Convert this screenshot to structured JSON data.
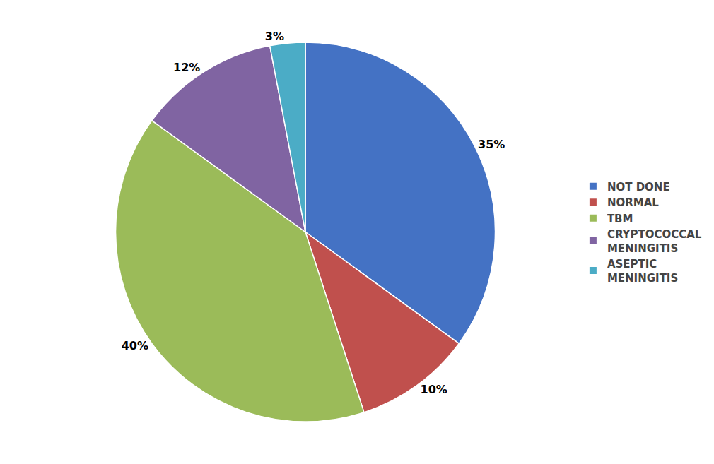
{
  "chart_data": {
    "type": "pie",
    "categories": [
      "NOT DONE",
      "NORMAL",
      "TBM",
      "CRYPTOCOCCAL\nMENINGITIS",
      "ASEPTIC\nMENINGITIS"
    ],
    "values": [
      35,
      10,
      40,
      12,
      3
    ],
    "value_labels": [
      "35%",
      "10%",
      "40%",
      "12%",
      "3%"
    ],
    "colors": [
      "#4472C4",
      "#C0504D",
      "#9BBB59",
      "#8064A2",
      "#4BACC6"
    ],
    "data_labels": true,
    "legend": "right"
  }
}
